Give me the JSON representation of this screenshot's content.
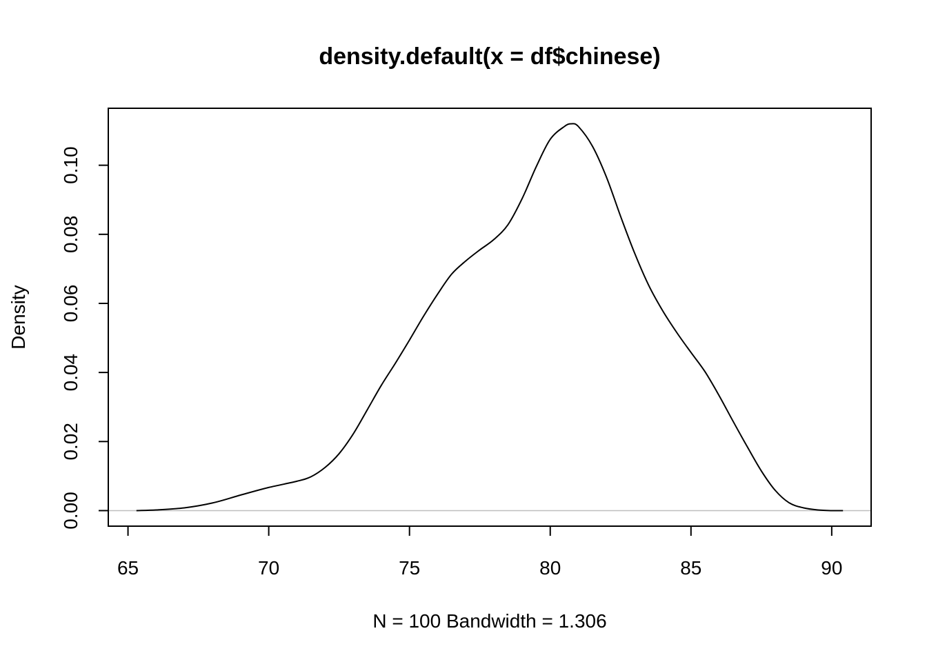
{
  "chart_data": {
    "type": "line",
    "title": "density.default(x = df$chinese)",
    "xlabel": "N = 100   Bandwidth = 1.306",
    "ylabel": "Density",
    "xlim": [
      64.3,
      91.4
    ],
    "ylim": [
      -0.0045,
      0.1165
    ],
    "x_ticks": [
      65,
      70,
      75,
      80,
      85,
      90
    ],
    "x_tick_labels": [
      "65",
      "70",
      "75",
      "80",
      "85",
      "90"
    ],
    "y_ticks": [
      0.0,
      0.02,
      0.04,
      0.06,
      0.08,
      0.1
    ],
    "y_tick_labels": [
      "0.00",
      "0.02",
      "0.04",
      "0.06",
      "0.08",
      "0.10"
    ],
    "baseline": 0,
    "baseline_color": "#bebebe",
    "line_color": "#000000",
    "grid": false,
    "legend": "none",
    "series": [
      {
        "x": [
          65.3,
          66.0,
          67.0,
          68.0,
          69.0,
          70.0,
          71.0,
          71.5,
          72.0,
          72.5,
          73.0,
          73.5,
          74.0,
          74.5,
          75.0,
          75.5,
          76.0,
          76.5,
          77.0,
          77.5,
          78.0,
          78.5,
          79.0,
          79.5,
          80.0,
          80.5,
          80.75,
          81.0,
          81.5,
          82.0,
          82.5,
          83.0,
          83.5,
          84.0,
          84.5,
          85.0,
          85.5,
          86.0,
          86.5,
          87.0,
          87.5,
          88.0,
          88.5,
          89.0,
          89.5,
          90.0,
          90.4
        ],
        "y": [
          0.0,
          0.0002,
          0.0008,
          0.0022,
          0.0045,
          0.0067,
          0.0085,
          0.0098,
          0.0125,
          0.0165,
          0.0222,
          0.0292,
          0.0363,
          0.0427,
          0.0494,
          0.0563,
          0.0627,
          0.0685,
          0.0723,
          0.0755,
          0.0785,
          0.0828,
          0.0903,
          0.0995,
          0.1075,
          0.1112,
          0.112,
          0.1112,
          0.1055,
          0.0965,
          0.0852,
          0.0745,
          0.0652,
          0.0578,
          0.0515,
          0.0458,
          0.0402,
          0.0333,
          0.0258,
          0.0185,
          0.0115,
          0.0058,
          0.0022,
          0.0008,
          0.0002,
          0.0,
          0.0
        ]
      }
    ]
  }
}
